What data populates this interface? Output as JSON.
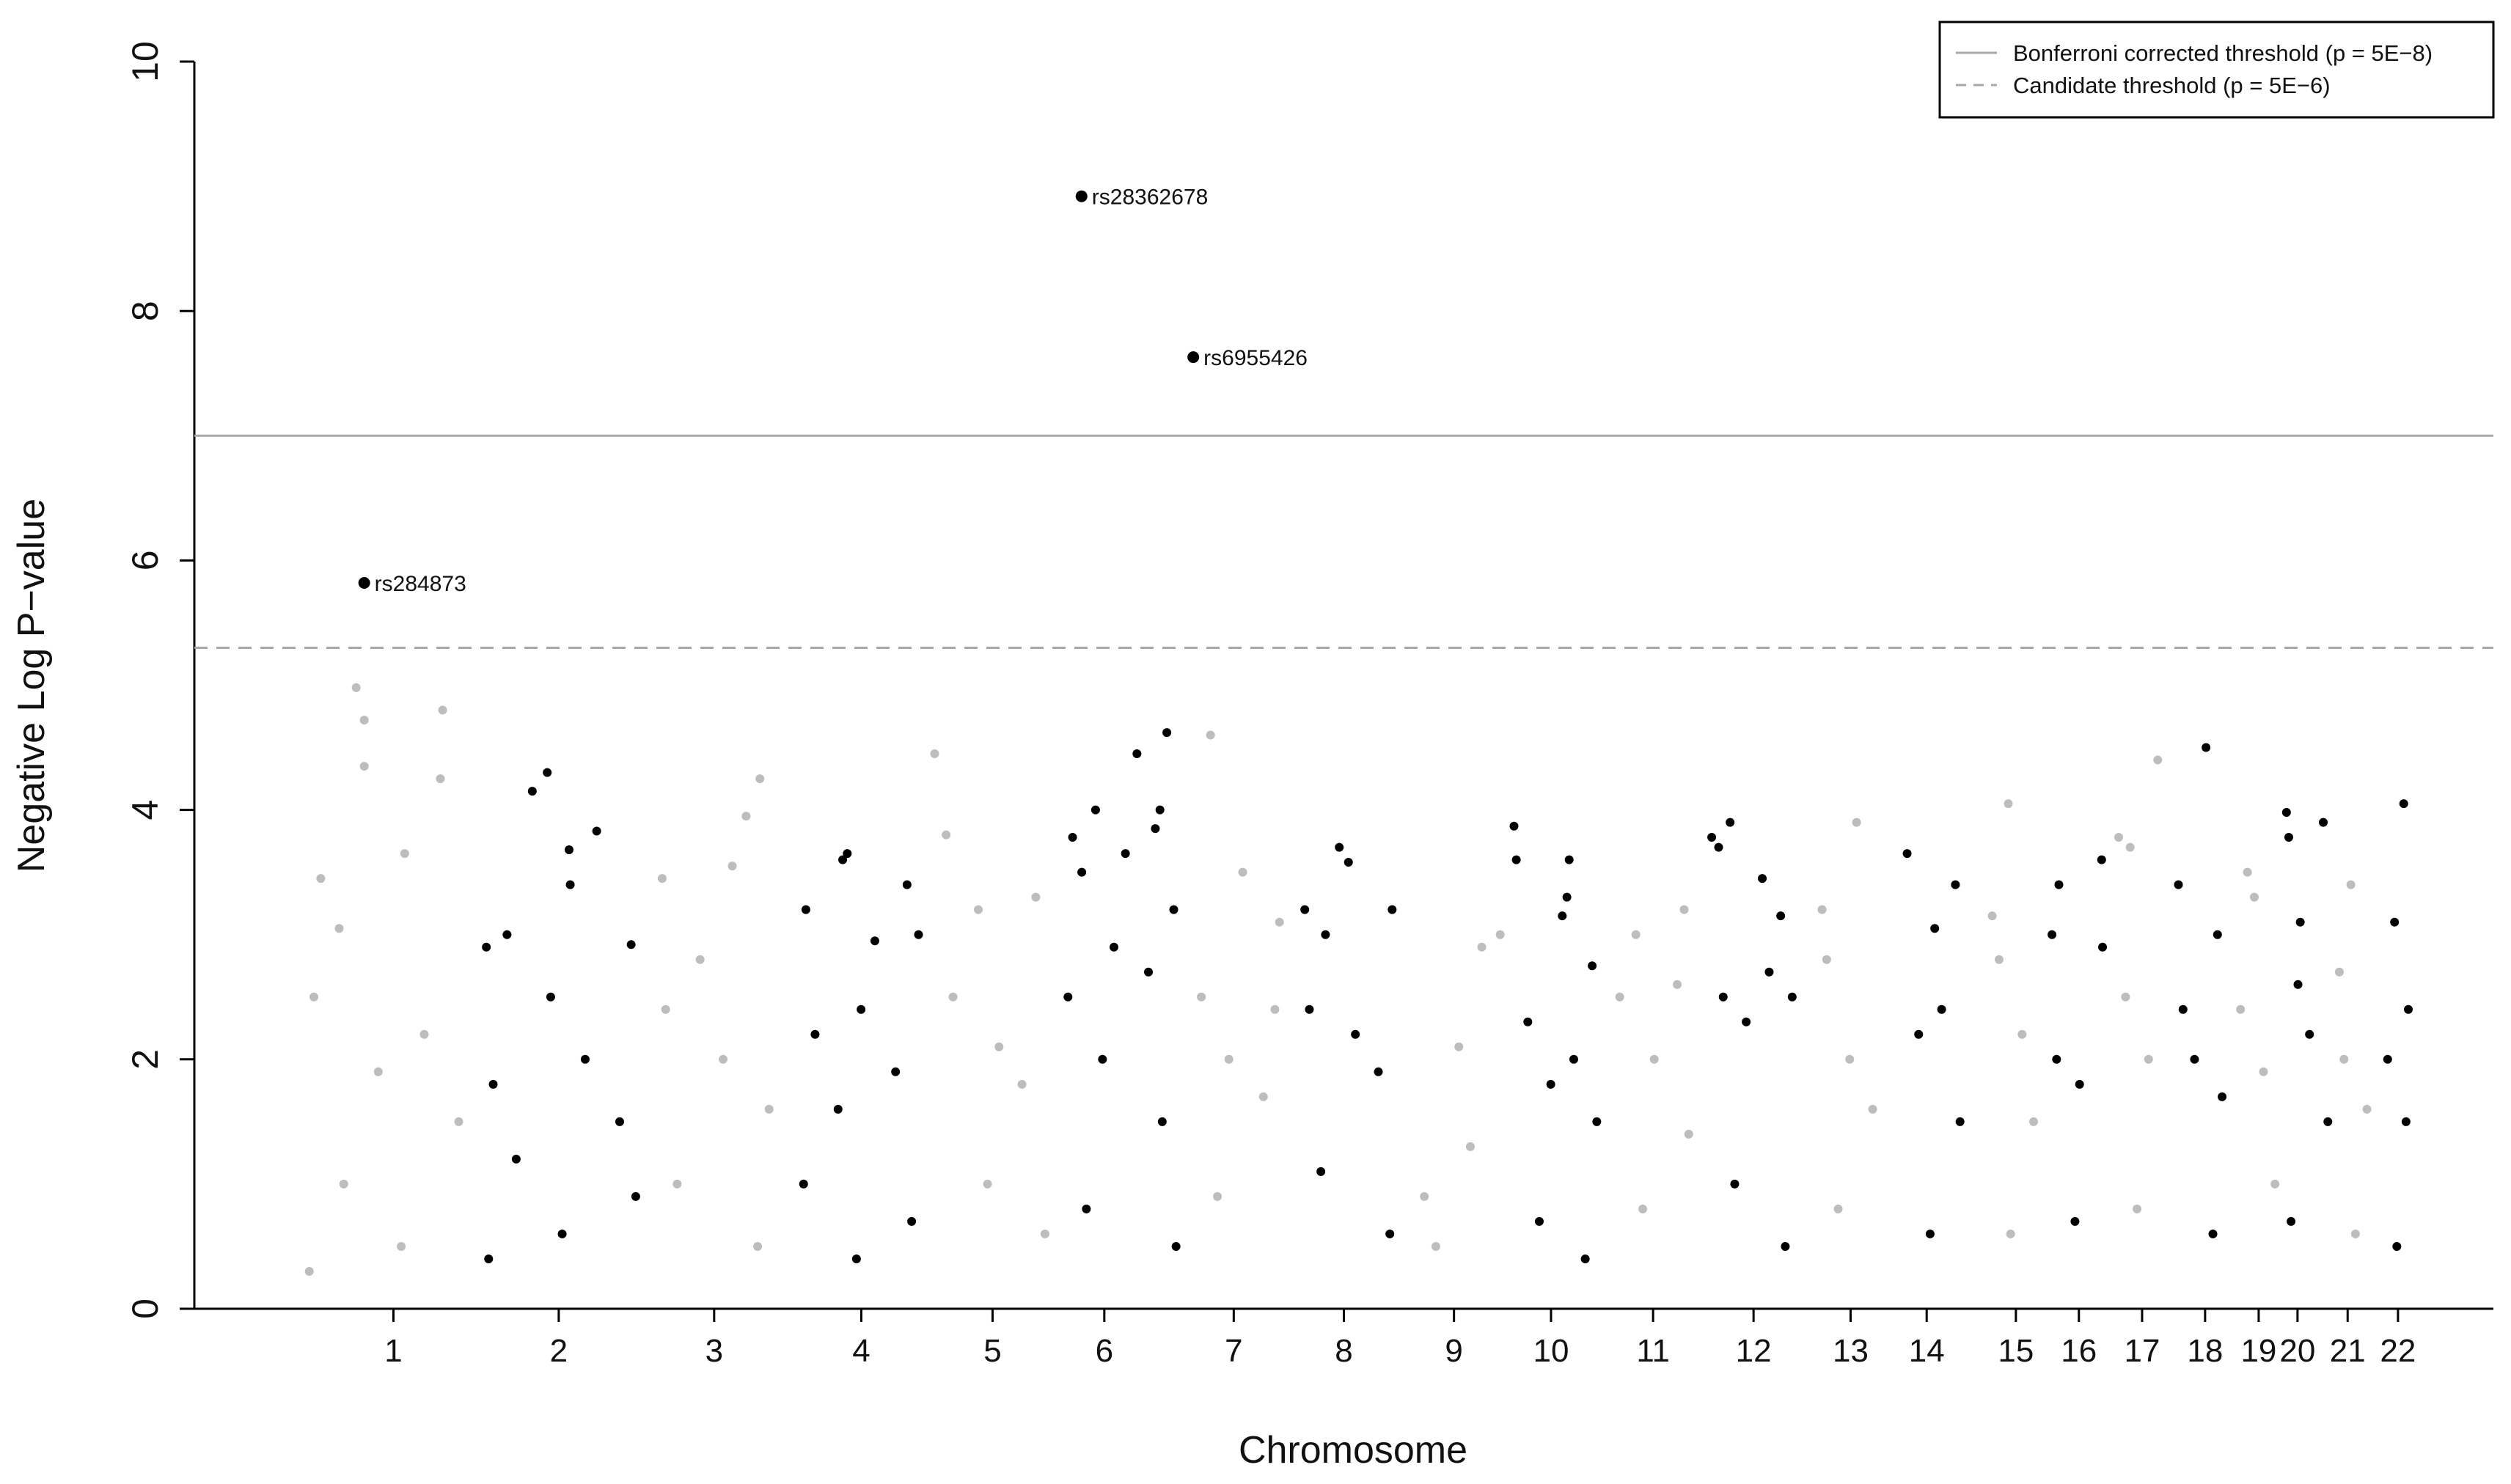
{
  "chart_data": {
    "type": "manhattan",
    "ylabel": "Negative Log P−value",
    "xlabel": "Chromosome",
    "ylim": [
      0,
      10
    ],
    "yticks": [
      0,
      2,
      4,
      6,
      8,
      10
    ],
    "xlim": [
      0,
      100
    ],
    "xticks": [
      {
        "value": 8.66,
        "label": "1"
      },
      {
        "value": 15.85,
        "label": "2"
      },
      {
        "value": 22.61,
        "label": "3"
      },
      {
        "value": 29.01,
        "label": "4"
      },
      {
        "value": 34.72,
        "label": "5"
      },
      {
        "value": 39.58,
        "label": "6"
      },
      {
        "value": 45.21,
        "label": "7"
      },
      {
        "value": 50.0,
        "label": "8"
      },
      {
        "value": 54.79,
        "label": "9"
      },
      {
        "value": 59.01,
        "label": "10"
      },
      {
        "value": 63.45,
        "label": "11"
      },
      {
        "value": 67.82,
        "label": "12"
      },
      {
        "value": 72.04,
        "label": "13"
      },
      {
        "value": 75.35,
        "label": "14"
      },
      {
        "value": 79.23,
        "label": "15"
      },
      {
        "value": 81.97,
        "label": "16"
      },
      {
        "value": 84.72,
        "label": "17"
      },
      {
        "value": 87.46,
        "label": "18"
      },
      {
        "value": 89.79,
        "label": "19"
      },
      {
        "value": 91.48,
        "label": "20"
      },
      {
        "value": 93.66,
        "label": "21"
      },
      {
        "value": 95.85,
        "label": "22"
      }
    ],
    "legend": "top-right",
    "thresholds": [
      {
        "name": "Bonferroni corrected threshold (p = 5E−8)",
        "value": 7,
        "color": "#a8a8a8",
        "dashed": false
      },
      {
        "name": "Candidate threshold (p = 5E−6)",
        "value": 5.3,
        "color": "#a8a8a8",
        "dashed": true
      }
    ],
    "chromosomes": [
      {
        "color": "#bdbdbd",
        "x": [
          7.04,
          7.39,
          7.39,
          10.8,
          10.7,
          5.5,
          9.15,
          6.3,
          5.2,
          8.0,
          10.0,
          6.5,
          11.5,
          9.0,
          5.0
        ],
        "values": [
          4.98,
          4.72,
          4.35,
          4.8,
          4.25,
          3.45,
          3.65,
          3.05,
          2.5,
          1.9,
          2.2,
          1.0,
          1.5,
          0.5,
          0.3
        ]
      },
      {
        "color": "#000000",
        "x": [
          14.7,
          15.35,
          16.3,
          16.35,
          17.5,
          19.0,
          13.6,
          12.7,
          13.0,
          14.0,
          15.5,
          17.0,
          18.5,
          16.0,
          19.2,
          12.8
        ],
        "values": [
          4.15,
          4.3,
          3.68,
          3.4,
          3.83,
          2.92,
          3.0,
          2.9,
          1.8,
          1.2,
          2.5,
          2.0,
          1.5,
          0.6,
          0.9,
          0.4
        ]
      },
      {
        "color": "#bdbdbd",
        "x": [
          24.6,
          24.0,
          20.35,
          23.4,
          20.5,
          22.0,
          23.0,
          25.0,
          21.0,
          24.5
        ],
        "values": [
          4.25,
          3.95,
          3.45,
          3.55,
          2.4,
          2.8,
          2.0,
          1.6,
          1.0,
          0.5
        ]
      },
      {
        "color": "#000000",
        "x": [
          28.4,
          28.2,
          26.6,
          31.0,
          31.5,
          29.6,
          27.0,
          28.0,
          29.0,
          30.5,
          26.5,
          31.2,
          28.8
        ],
        "values": [
          3.65,
          3.6,
          3.2,
          3.4,
          3.0,
          2.95,
          2.2,
          1.6,
          2.4,
          1.9,
          1.0,
          0.7,
          0.4
        ]
      },
      {
        "color": "#bdbdbd",
        "x": [
          32.2,
          32.7,
          34.1,
          36.6,
          33.0,
          35.0,
          36.0,
          34.5,
          37.0
        ],
        "values": [
          4.45,
          3.8,
          3.2,
          3.3,
          2.5,
          2.1,
          1.8,
          1.0,
          0.6
        ]
      },
      {
        "color": "#000000",
        "x": [
          39.2,
          38.2,
          38.6,
          40.5,
          41.0,
          41.8,
          42.0,
          42.3,
          42.6,
          38.0,
          39.5,
          40.0,
          41.5,
          42.1,
          38.8,
          42.7
        ],
        "values": [
          4.0,
          3.78,
          3.5,
          3.65,
          4.45,
          3.85,
          4.0,
          4.62,
          3.2,
          2.5,
          2.0,
          2.9,
          2.7,
          1.5,
          0.8,
          0.5
        ]
      },
      {
        "color": "#bdbdbd",
        "x": [
          44.2,
          45.6,
          47.2,
          43.8,
          45.0,
          46.5,
          47.0,
          44.5
        ],
        "values": [
          4.6,
          3.5,
          3.1,
          2.5,
          2.0,
          1.7,
          2.4,
          0.9
        ]
      },
      {
        "color": "#000000",
        "x": [
          49.8,
          50.2,
          48.3,
          52.1,
          49.2,
          48.5,
          50.5,
          51.5,
          49.0,
          52.0
        ],
        "values": [
          3.7,
          3.58,
          3.2,
          3.2,
          3.0,
          2.4,
          2.2,
          1.9,
          1.1,
          0.6
        ]
      },
      {
        "color": "#bdbdbd",
        "x": [
          55.0,
          56.0,
          53.5,
          54.0,
          55.5,
          56.8
        ],
        "values": [
          2.1,
          2.9,
          0.9,
          0.5,
          1.3,
          3.0
        ]
      },
      {
        "color": "#000000",
        "x": [
          57.4,
          57.5,
          59.5,
          59.8,
          59.7,
          60.8,
          58.0,
          59.0,
          60.0,
          61.0,
          58.5,
          60.5
        ],
        "values": [
          3.87,
          3.6,
          3.15,
          3.6,
          3.3,
          2.75,
          2.3,
          1.8,
          2.0,
          1.5,
          0.7,
          0.4
        ]
      },
      {
        "color": "#bdbdbd",
        "x": [
          62.7,
          64.8,
          62.0,
          63.5,
          64.5,
          65.0,
          63.0
        ],
        "values": [
          3.0,
          3.2,
          2.5,
          2.0,
          2.6,
          1.4,
          0.8
        ]
      },
      {
        "color": "#000000",
        "x": [
          66.0,
          66.3,
          66.8,
          68.2,
          69.0,
          66.5,
          67.5,
          68.5,
          69.5,
          67.0,
          69.2
        ],
        "values": [
          3.78,
          3.7,
          3.9,
          3.45,
          3.15,
          2.5,
          2.3,
          2.7,
          2.5,
          1.0,
          0.5
        ]
      },
      {
        "color": "#bdbdbd",
        "x": [
          72.3,
          70.8,
          71.0,
          72.0,
          73.0,
          71.5
        ],
        "values": [
          3.9,
          3.2,
          2.8,
          2.0,
          1.6,
          0.8
        ]
      },
      {
        "color": "#000000",
        "x": [
          74.5,
          76.6,
          75.7,
          75.0,
          76.0,
          76.8,
          75.5
        ],
        "values": [
          3.65,
          3.4,
          3.05,
          2.2,
          2.4,
          1.5,
          0.6
        ]
      },
      {
        "color": "#bdbdbd",
        "x": [
          78.9,
          78.2,
          78.5,
          79.5,
          80.0,
          79.0
        ],
        "values": [
          4.05,
          3.15,
          2.8,
          2.2,
          1.5,
          0.6
        ]
      },
      {
        "color": "#000000",
        "x": [
          81.1,
          82.96,
          80.8,
          81.0,
          82.0,
          83.0,
          81.8
        ],
        "values": [
          3.4,
          3.6,
          3.0,
          2.0,
          1.8,
          2.9,
          0.7
        ]
      },
      {
        "color": "#bdbdbd",
        "x": [
          85.4,
          83.7,
          84.2,
          84.0,
          85.0,
          84.5
        ],
        "values": [
          4.4,
          3.78,
          3.7,
          2.5,
          2.0,
          0.8
        ]
      },
      {
        "color": "#000000",
        "x": [
          87.5,
          86.3,
          88.0,
          86.5,
          87.0,
          88.2,
          87.8
        ],
        "values": [
          4.5,
          3.4,
          3.0,
          2.4,
          2.0,
          1.7,
          0.6
        ]
      },
      {
        "color": "#bdbdbd",
        "x": [
          89.3,
          89.6,
          89.0,
          90.0,
          90.5
        ],
        "values": [
          3.5,
          3.3,
          2.4,
          1.9,
          1.0
        ]
      },
      {
        "color": "#000000",
        "x": [
          91.0,
          91.1,
          92.6,
          91.6,
          91.5,
          92.0,
          92.8,
          91.2
        ],
        "values": [
          3.98,
          3.78,
          3.9,
          3.1,
          2.6,
          2.2,
          1.5,
          0.7
        ]
      },
      {
        "color": "#bdbdbd",
        "x": [
          93.8,
          93.3,
          93.5,
          94.5,
          94.0
        ],
        "values": [
          3.4,
          2.7,
          2.0,
          1.6,
          0.6
        ]
      },
      {
        "color": "#000000",
        "x": [
          96.1,
          95.7,
          96.3,
          95.4,
          96.2,
          95.8
        ],
        "values": [
          4.05,
          3.1,
          2.4,
          2.0,
          1.5,
          0.5
        ]
      }
    ],
    "annotations": [
      {
        "label": "rs284873",
        "x": 7.39,
        "value": 5.82
      },
      {
        "label": "rs28362678",
        "x": 38.59,
        "value": 8.92
      },
      {
        "label": "rs6955426",
        "x": 43.45,
        "value": 7.63
      }
    ]
  }
}
